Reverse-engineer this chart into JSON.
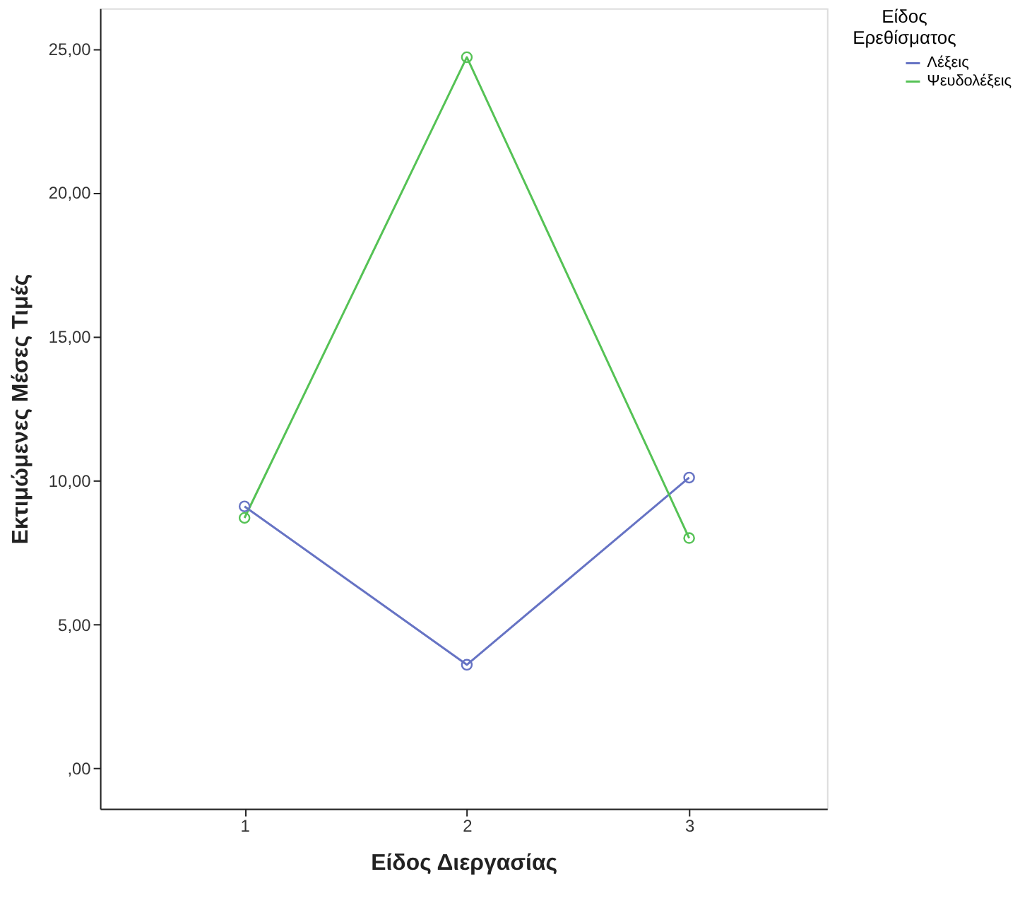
{
  "chart_data": {
    "type": "line",
    "xlabel": "Είδος Διεργασίας",
    "ylabel": "Εκτιμώμενες Μέσες Τιμές",
    "legend_title": "Είδος Ερεθίσματος",
    "categories": [
      "1",
      "2",
      "3"
    ],
    "series": [
      {
        "name": "Λέξεις",
        "color": "#6673c4",
        "values": [
          9.1,
          3.6,
          10.1
        ]
      },
      {
        "name": "Ψευδολέξεις",
        "color": "#55c255",
        "values": [
          8.7,
          24.7,
          8.0
        ]
      }
    ],
    "ylim": [
      -1.4,
      26.4
    ],
    "yticks": [
      {
        "value": 0,
        "label": ",00"
      },
      {
        "value": 5,
        "label": "5,00"
      },
      {
        "value": 10,
        "label": "10,00"
      },
      {
        "value": 15,
        "label": "15,00"
      },
      {
        "value": 20,
        "label": "20,00"
      },
      {
        "value": 25,
        "label": "25,00"
      }
    ],
    "marker": "circle",
    "legend": "top right",
    "grid": false
  }
}
